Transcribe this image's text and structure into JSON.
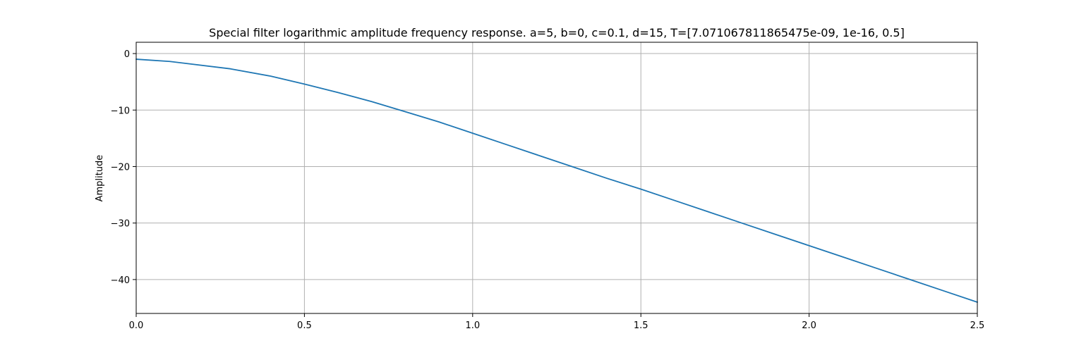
{
  "chart_data": {
    "type": "line",
    "title": "Special filter logarithmic amplitude frequency response. a=5, b=0, c=0.1, d=15, T=[7.071067811865475e-09, 1e-16, 0.5]",
    "xlabel": "",
    "ylabel": "Amplitude",
    "xlim": [
      0,
      2.5
    ],
    "ylim": [
      -46,
      2
    ],
    "grid": true,
    "legend": "none",
    "xticks": [
      0.0,
      0.5,
      1.0,
      1.5,
      2.0,
      2.5
    ],
    "xtick_labels": [
      "0.0",
      "0.5",
      "1.0",
      "1.5",
      "2.0",
      "2.5"
    ],
    "yticks": [
      0,
      -10,
      -20,
      -30,
      -40
    ],
    "ytick_labels": [
      "0",
      "−10",
      "−20",
      "−30",
      "−40"
    ],
    "series": [
      {
        "name": "amplitude",
        "color": "#1f77b4",
        "x": [
          0.0,
          0.1,
          0.28,
          0.4,
          0.5,
          0.6,
          0.7,
          0.8,
          0.9,
          1.0,
          1.1,
          1.2,
          1.3,
          1.4,
          1.5,
          1.6,
          1.7,
          1.8,
          1.9,
          2.0,
          2.1,
          2.2,
          2.3,
          2.4,
          2.5
        ],
        "y": [
          -1.0,
          -1.4,
          -2.7,
          -4.0,
          -5.4,
          -6.9,
          -8.5,
          -10.3,
          -12.1,
          -14.1,
          -16.1,
          -18.1,
          -20.1,
          -22.1,
          -24.0,
          -26.0,
          -28.0,
          -30.0,
          -32.0,
          -34.0,
          -36.0,
          -38.0,
          -40.0,
          -42.0,
          -44.0
        ]
      }
    ]
  }
}
